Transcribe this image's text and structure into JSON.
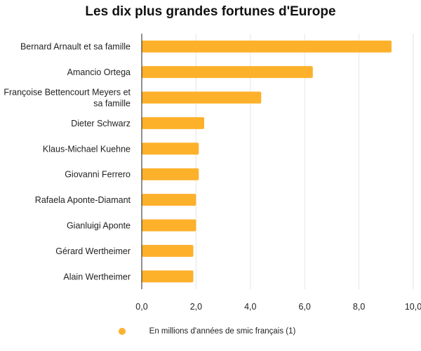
{
  "chart_data": {
    "type": "bar",
    "orientation": "horizontal",
    "title": "Les dix plus grandes fortunes d'Europe",
    "categories": [
      "Bernard Arnault et sa famille",
      "Amancio Ortega",
      "Françoise Bettencourt Meyers et sa famille",
      "Dieter Schwarz",
      "Klaus-Michael Kuehne",
      "Giovanni Ferrero",
      "Rafaela Aponte-Diamant",
      "Gianluigi Aponte",
      "Gérard Wertheimer",
      "Alain Wertheimer"
    ],
    "series": [
      {
        "name": "En millions d'années de smic français (1)",
        "values": [
          9.2,
          6.3,
          4.4,
          2.3,
          2.1,
          2.1,
          2.0,
          2.0,
          1.9,
          1.9
        ],
        "color": "#FDB12B"
      }
    ],
    "xlim": [
      0,
      10
    ],
    "xticks": [
      "0,0",
      "2,0",
      "4,0",
      "6,0",
      "8,0",
      "10,0"
    ],
    "grid": true,
    "legend_position": "bottom"
  }
}
